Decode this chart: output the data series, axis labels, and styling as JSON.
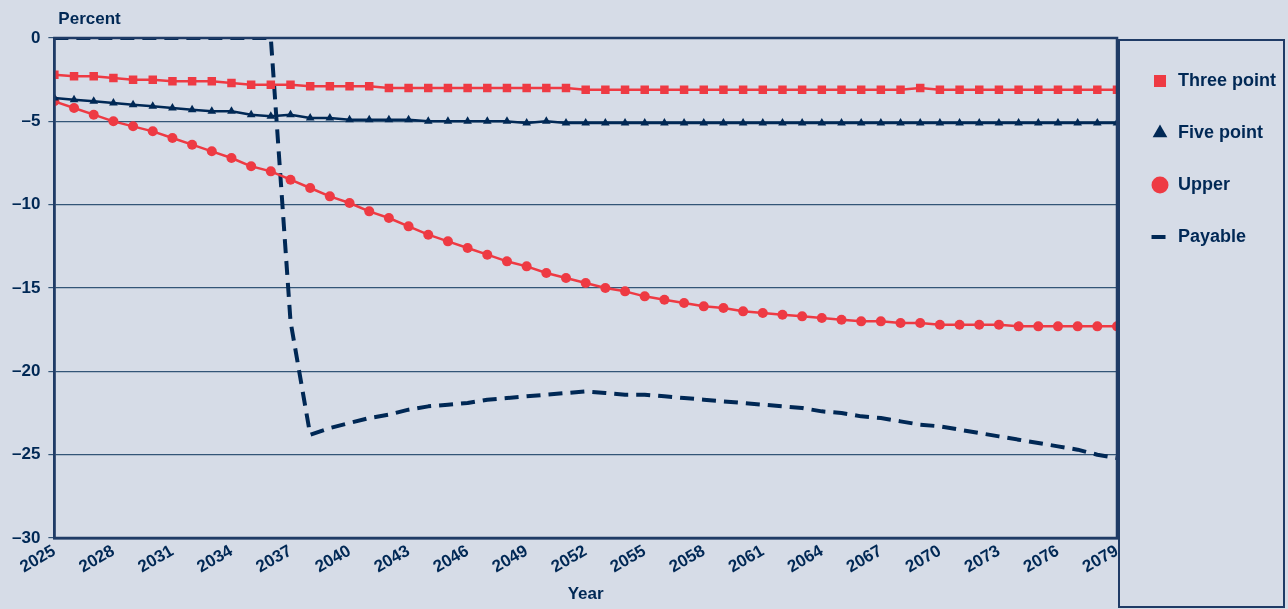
{
  "chart_data": {
    "type": "line",
    "ylabel": "Percent",
    "xlabel": "Year",
    "x": [
      2025,
      2026,
      2027,
      2028,
      2029,
      2030,
      2031,
      2032,
      2033,
      2034,
      2035,
      2036,
      2037,
      2038,
      2039,
      2040,
      2041,
      2042,
      2043,
      2044,
      2045,
      2046,
      2047,
      2048,
      2049,
      2050,
      2051,
      2052,
      2053,
      2054,
      2055,
      2056,
      2057,
      2058,
      2059,
      2060,
      2061,
      2062,
      2063,
      2064,
      2065,
      2066,
      2067,
      2068,
      2069,
      2070,
      2071,
      2072,
      2073,
      2074,
      2075,
      2076,
      2077,
      2078,
      2079
    ],
    "xlim": [
      2025,
      2079
    ],
    "xticks": [
      2025,
      2028,
      2031,
      2034,
      2037,
      2040,
      2043,
      2046,
      2049,
      2052,
      2055,
      2058,
      2061,
      2064,
      2067,
      2070,
      2073,
      2076,
      2079
    ],
    "ylim": [
      -30,
      0
    ],
    "yticks": [
      {
        "value": -30,
        "label": "–30"
      },
      {
        "value": -25,
        "label": "–25"
      },
      {
        "value": -20,
        "label": "–20"
      },
      {
        "value": -15,
        "label": "–15"
      },
      {
        "value": -10,
        "label": "–10"
      },
      {
        "value": -5,
        "label": "–5"
      },
      0
    ],
    "grid": "y",
    "legend": "right",
    "series": [
      {
        "name": "Three point",
        "color": "#ee3a43",
        "marker": "square",
        "line_style": "solid",
        "values": [
          -2.2,
          -2.3,
          -2.3,
          -2.4,
          -2.5,
          -2.5,
          -2.6,
          -2.6,
          -2.6,
          -2.7,
          -2.8,
          -2.8,
          -2.8,
          -2.9,
          -2.9,
          -2.9,
          -2.9,
          -3.0,
          -3.0,
          -3.0,
          -3.0,
          -3.0,
          -3.0,
          -3.0,
          -3.0,
          -3.0,
          -3.0,
          -3.1,
          -3.1,
          -3.1,
          -3.1,
          -3.1,
          -3.1,
          -3.1,
          -3.1,
          -3.1,
          -3.1,
          -3.1,
          -3.1,
          -3.1,
          -3.1,
          -3.1,
          -3.1,
          -3.1,
          -3.0,
          -3.1,
          -3.1,
          -3.1,
          -3.1,
          -3.1,
          -3.1,
          -3.1,
          -3.1,
          -3.1,
          -3.1
        ]
      },
      {
        "name": "Five point",
        "color": "#002855",
        "marker": "triangle",
        "line_style": "solid",
        "values": [
          -3.6,
          -3.7,
          -3.8,
          -3.9,
          -4.0,
          -4.1,
          -4.2,
          -4.3,
          -4.4,
          -4.4,
          -4.6,
          -4.7,
          -4.6,
          -4.8,
          -4.8,
          -4.9,
          -4.9,
          -4.9,
          -4.9,
          -5.0,
          -5.0,
          -5.0,
          -5.0,
          -5.0,
          -5.1,
          -5.0,
          -5.1,
          -5.1,
          -5.1,
          -5.1,
          -5.1,
          -5.1,
          -5.1,
          -5.1,
          -5.1,
          -5.1,
          -5.1,
          -5.1,
          -5.1,
          -5.1,
          -5.1,
          -5.1,
          -5.1,
          -5.1,
          -5.1,
          -5.1,
          -5.1,
          -5.1,
          -5.1,
          -5.1,
          -5.1,
          -5.1,
          -5.1,
          -5.1,
          -5.1
        ]
      },
      {
        "name": "Upper",
        "color": "#ee3a43",
        "marker": "circle",
        "line_style": "solid",
        "values": [
          -3.8,
          -4.2,
          -4.6,
          -5.0,
          -5.3,
          -5.6,
          -6.0,
          -6.4,
          -6.8,
          -7.2,
          -7.7,
          -8.0,
          -8.5,
          -9.0,
          -9.5,
          -9.9,
          -10.4,
          -10.8,
          -11.3,
          -11.8,
          -12.2,
          -12.6,
          -13.0,
          -13.4,
          -13.7,
          -14.1,
          -14.4,
          -14.7,
          -15.0,
          -15.2,
          -15.5,
          -15.7,
          -15.9,
          -16.1,
          -16.2,
          -16.4,
          -16.5,
          -16.6,
          -16.7,
          -16.8,
          -16.9,
          -17.0,
          -17.0,
          -17.1,
          -17.1,
          -17.2,
          -17.2,
          -17.2,
          -17.2,
          -17.3,
          -17.3,
          -17.3,
          -17.3,
          -17.3,
          -17.3
        ]
      },
      {
        "name": "Payable",
        "color": "#002855",
        "marker": "none",
        "line_style": "dashed",
        "values": [
          0,
          0,
          0,
          0,
          0,
          0,
          0,
          0,
          0,
          0,
          0,
          0,
          -17.0,
          -23.8,
          -23.4,
          -23.1,
          -22.8,
          -22.6,
          -22.3,
          -22.1,
          -22.0,
          -21.9,
          -21.7,
          -21.6,
          -21.5,
          -21.4,
          -21.3,
          -21.2,
          -21.3,
          -21.4,
          -21.4,
          -21.5,
          -21.6,
          -21.7,
          -21.8,
          -21.9,
          -22.0,
          -22.1,
          -22.2,
          -22.4,
          -22.5,
          -22.7,
          -22.8,
          -23.0,
          -23.2,
          -23.3,
          -23.5,
          -23.7,
          -23.9,
          -24.1,
          -24.3,
          -24.5,
          -24.7,
          -25.0,
          -25.2
        ]
      }
    ]
  }
}
